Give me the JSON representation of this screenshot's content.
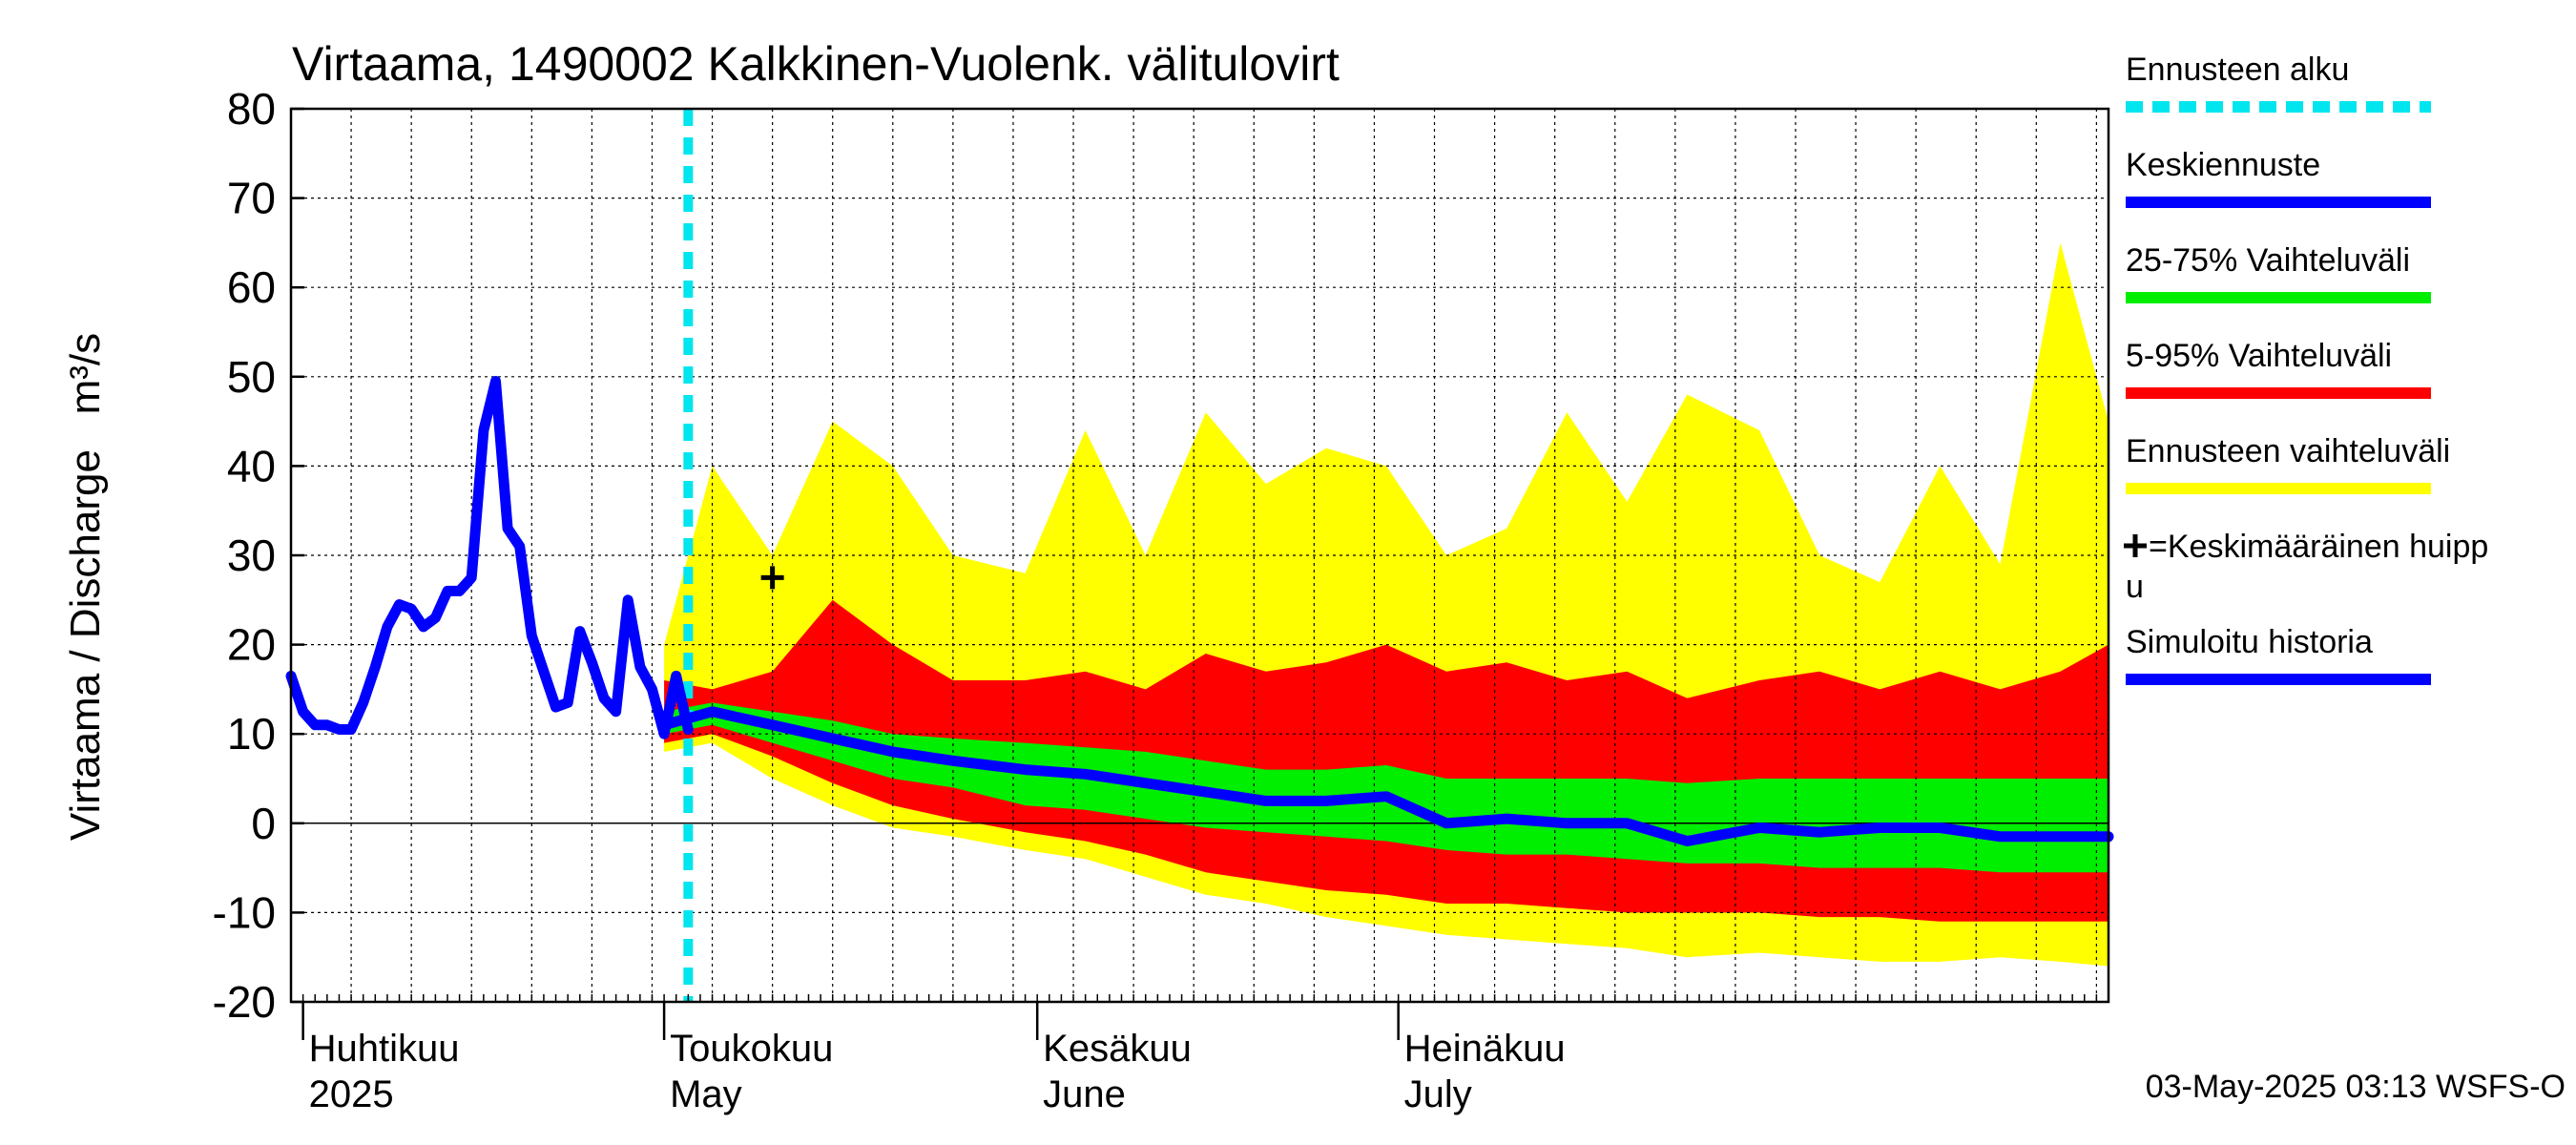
{
  "chart_data": {
    "type": "area",
    "title": "Virtaama, 1490002 Kalkkinen-Vuolenk. välitulovirt",
    "ylabel": "Virtaama / Discharge   m³/s",
    "ylim": [
      -20,
      80
    ],
    "yticks": [
      -20,
      -10,
      0,
      10,
      20,
      30,
      40,
      50,
      60,
      70,
      80
    ],
    "xlim": [
      "2025-03-31",
      "2025-08-29"
    ],
    "grid": true,
    "legend_position": "right",
    "month_labels": [
      {
        "date": "2025-04-01",
        "fi": "Huhtikuu",
        "en": "2025"
      },
      {
        "date": "2025-05-01",
        "fi": "Toukokuu",
        "en": "May"
      },
      {
        "date": "2025-06-01",
        "fi": "Kesäkuu",
        "en": "June"
      },
      {
        "date": "2025-07-01",
        "fi": "Heinäkuu",
        "en": "July"
      }
    ],
    "forecast_start": "2025-05-03",
    "footer": "03-May-2025 03:13 WSFS-O",
    "colors": {
      "forecast_start": "#00e5ee",
      "mean": "#0000ff",
      "band_25_75": "#00ee00",
      "band_5_95": "#ff0000",
      "band_range": "#ffff00",
      "history": "#0000ff",
      "peak": "#000000"
    },
    "legend": [
      {
        "label": "Ennusteen alku",
        "key": "forecast_start",
        "style": "dashed"
      },
      {
        "label": "Keskiennuste",
        "key": "mean",
        "style": "line"
      },
      {
        "label": "25-75% Vaihteluväli",
        "key": "band_25_75",
        "style": "line"
      },
      {
        "label": "5-95% Vaihteluväli",
        "key": "band_5_95",
        "style": "line"
      },
      {
        "label": "Ennusteen vaihteluväli",
        "key": "band_range",
        "style": "line"
      },
      {
        "label": "=Keskimääräinen huipp",
        "label2": "u",
        "key": "peak",
        "style": "plus"
      },
      {
        "label": "Simuloitu historia",
        "key": "history",
        "style": "line"
      }
    ],
    "peak_marker": {
      "date": "2025-05-10",
      "value": 27.5
    },
    "history": {
      "dates": [
        "2025-03-31",
        "2025-04-01",
        "2025-04-02",
        "2025-04-03",
        "2025-04-04",
        "2025-04-05",
        "2025-04-06",
        "2025-04-07",
        "2025-04-08",
        "2025-04-09",
        "2025-04-10",
        "2025-04-11",
        "2025-04-12",
        "2025-04-13",
        "2025-04-14",
        "2025-04-15",
        "2025-04-16",
        "2025-04-17",
        "2025-04-18",
        "2025-04-19",
        "2025-04-20",
        "2025-04-21",
        "2025-04-22",
        "2025-04-23",
        "2025-04-24",
        "2025-04-25",
        "2025-04-26",
        "2025-04-27",
        "2025-04-28",
        "2025-04-29",
        "2025-04-30",
        "2025-05-01",
        "2025-05-02",
        "2025-05-03"
      ],
      "values": [
        16.5,
        12.5,
        11.0,
        11.0,
        10.5,
        10.5,
        13.5,
        17.5,
        22.0,
        24.5,
        24.0,
        22.0,
        23.0,
        26.0,
        26.0,
        27.5,
        44.0,
        49.5,
        33.0,
        31.0,
        21.0,
        17.0,
        13.0,
        13.5,
        21.5,
        18.0,
        14.0,
        12.5,
        25.0,
        17.5,
        15.0,
        10.0,
        16.5,
        10.5
      ]
    },
    "forecast": {
      "dates": [
        "2025-05-01",
        "2025-05-05",
        "2025-05-10",
        "2025-05-15",
        "2025-05-20",
        "2025-05-25",
        "2025-05-31",
        "2025-06-05",
        "2025-06-10",
        "2025-06-15",
        "2025-06-20",
        "2025-06-25",
        "2025-06-30",
        "2025-07-05",
        "2025-07-10",
        "2025-07-15",
        "2025-07-20",
        "2025-07-25",
        "2025-07-31",
        "2025-08-05",
        "2025-08-10",
        "2025-08-15",
        "2025-08-20",
        "2025-08-25",
        "2025-08-29"
      ],
      "mean": [
        11.0,
        12.5,
        11.0,
        9.5,
        8.0,
        7.0,
        6.0,
        5.5,
        4.5,
        3.5,
        2.5,
        2.5,
        3.0,
        0.0,
        0.5,
        0.0,
        0.0,
        -2.0,
        -0.5,
        -1.0,
        -0.5,
        -0.5,
        -1.5,
        -1.5,
        -1.5
      ],
      "p25": [
        10.0,
        11.0,
        9.0,
        7.0,
        5.0,
        4.0,
        2.0,
        1.5,
        0.5,
        -0.5,
        -1.0,
        -1.5,
        -2.0,
        -3.0,
        -3.5,
        -3.5,
        -4.0,
        -4.5,
        -4.5,
        -5.0,
        -5.0,
        -5.0,
        -5.5,
        -5.5,
        -5.5
      ],
      "p75": [
        12.5,
        13.5,
        12.5,
        11.5,
        10.0,
        9.5,
        9.0,
        8.5,
        8.0,
        7.0,
        6.0,
        6.0,
        6.5,
        5.0,
        5.0,
        5.0,
        5.0,
        4.5,
        5.0,
        5.0,
        5.0,
        5.0,
        5.0,
        5.0,
        5.0
      ],
      "p05": [
        9.0,
        10.0,
        7.5,
        4.5,
        2.0,
        0.5,
        -1.0,
        -2.0,
        -3.5,
        -5.5,
        -6.5,
        -7.5,
        -8.0,
        -9.0,
        -9.0,
        -9.5,
        -10.0,
        -10.0,
        -10.0,
        -10.5,
        -10.5,
        -11.0,
        -11.0,
        -11.0,
        -11.0
      ],
      "p95": [
        16.0,
        15.0,
        17.0,
        25.0,
        20.0,
        16.0,
        16.0,
        17.0,
        15.0,
        19.0,
        17.0,
        18.0,
        20.0,
        17.0,
        18.0,
        16.0,
        17.0,
        14.0,
        16.0,
        17.0,
        15.0,
        17.0,
        15.0,
        17.0,
        20.0
      ],
      "min": [
        8.0,
        9.0,
        5.0,
        2.0,
        -0.5,
        -1.5,
        -3.0,
        -4.0,
        -6.0,
        -8.0,
        -9.0,
        -10.5,
        -11.5,
        -12.5,
        -13.0,
        -13.5,
        -14.0,
        -15.0,
        -14.5,
        -15.0,
        -15.5,
        -15.5,
        -15.0,
        -15.5,
        -16.0
      ],
      "max": [
        20.0,
        40.0,
        30.0,
        45.0,
        40.0,
        30.0,
        28.0,
        44.0,
        30.0,
        46.0,
        38.0,
        42.0,
        40.0,
        30.0,
        33.0,
        46.0,
        36.0,
        48.0,
        44.0,
        30.0,
        27.0,
        40.0,
        29.0,
        65.0,
        45.0
      ]
    }
  }
}
